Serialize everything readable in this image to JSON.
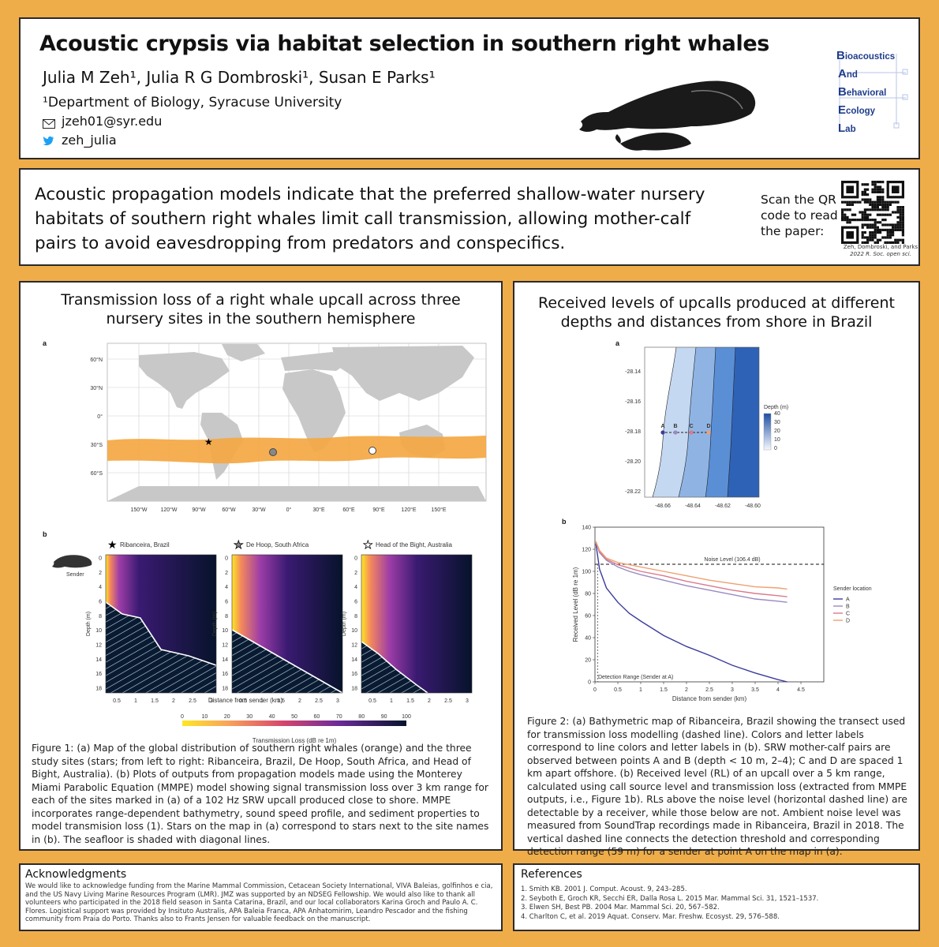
{
  "header": {
    "title": "Acoustic crypsis via habitat selection in southern right whales",
    "authors": "Julia M Zeh¹, Julia R G Dombroski¹, Susan E Parks¹",
    "affiliation": "¹Department of Biology, Syracuse University",
    "email": "jzeh01@syr.edu",
    "twitter": "zeh_julia",
    "lab_logo": {
      "lines": [
        "Bioacoustics",
        "And",
        "Behavioral",
        "Ecology",
        "Lab"
      ],
      "color": "#1f3d8a"
    }
  },
  "summary": {
    "text": "Acoustic propagation models indicate that the preferred shallow-water nursery habitats of southern right whales limit call transmission, allowing mother-calf pairs to avoid eavesdropping from predators and conspecifics.",
    "qr_label": "Scan the QR code to read the paper:",
    "qr_caption_1": "Zeh, Dombroski, and Parks",
    "qr_caption_2": "2022 R. Soc. open sci."
  },
  "left_section": {
    "title": "Transmission loss of a right whale upcall across three nursery sites in the southern hemisphere",
    "panel_a_label": "a",
    "panel_b_label": "b",
    "map": {
      "lat_ticks": [
        "60°N",
        "30°N",
        "0°",
        "30°S",
        "60°S"
      ],
      "lon_ticks": [
        "150°W",
        "120°W",
        "90°W",
        "60°W",
        "30°W",
        "0°",
        "30°E",
        "60°E",
        "90°E",
        "120°E",
        "150°E"
      ]
    },
    "sites": [
      {
        "name": "Ribanceira, Brazil",
        "star": "black-star"
      },
      {
        "name": "De Hoop, South Africa",
        "star": "gray-star"
      },
      {
        "name": "Head of the Bight, Australia",
        "star": "white-star"
      }
    ],
    "sender_label": "Sender",
    "depth_label": "Depth (m)",
    "depth_ticks": [
      "0",
      "2",
      "4",
      "6",
      "8",
      "10",
      "12",
      "14",
      "16",
      "18"
    ],
    "distance_ticks": [
      "0.5",
      "1",
      "1.5",
      "2",
      "2.5",
      "3"
    ],
    "distance_label": "Distance from sender (km)",
    "colorbar_ticks": [
      "0",
      "10",
      "20",
      "30",
      "40",
      "50",
      "60",
      "70",
      "80",
      "90",
      "100"
    ],
    "colorbar_label": "Transmission Loss (dB re 1m)",
    "caption": "Figure 1: (a) Map of the global distribution of southern right whales (orange) and the three study sites (stars; from left to right: Ribanceira, Brazil, De Hoop, South Africa, and Head of Bight, Australia). (b) Plots of outputs from propagation models made using the Monterey Miami Parabolic Equation (MMPE) model showing signal transmission loss over 3 km range for each of the sites marked in (a) of a 102 Hz SRW upcall produced close to shore. MMPE incorporates range-dependent bathymetry, sound speed profile, and sediment properties to model transmision loss (1). Stars on the map in (a) correspond to stars next to the site names in (b). The seafloor is shaded with diagonal lines."
  },
  "right_section": {
    "title": "Received levels of upcalls produced at different depths and distances from shore in Brazil",
    "panel_a_label": "a",
    "panel_b_label": "b",
    "bathy": {
      "lat_ticks": [
        "-28.14",
        "-28.16",
        "-28.18",
        "-28.20",
        "-28.22"
      ],
      "lon_ticks": [
        "-48.66",
        "-48.64",
        "-48.62",
        "-48.60"
      ],
      "colorbar_title": "Depth (m)",
      "colorbar_ticks": [
        "40",
        "30",
        "20",
        "10",
        "0"
      ],
      "point_labels": [
        "A",
        "B",
        "C",
        "D"
      ]
    },
    "caption": "Figure 2: (a) Bathymetric map of Ribanceira, Brazil showing the transect used for transmission loss modelling (dashed line). Colors and letter labels correspond to line colors and letter labels in (b). SRW mother-calf pairs are observed between points A and B (depth < 10 m, 2–4); C and D are spaced 1 km apart offshore. (b) Received level (RL) of an upcall over a 5 km range, calculated using call source level and transmission loss (extracted from MMPE outputs, i.e., Figure 1b). RLs above the noise level (horizontal dashed line) are detectable by a receiver, while those below are not. Ambient noise level was measured from SoundTrap recordings made in Ribanceira, Brazil in 2018. The vertical dashed line connects the detection threshold and corresponding detection range (59 m) for a sender at point A on the map in (a)."
  },
  "chart_data": {
    "type": "line",
    "xlabel": "Distance from sender (km)",
    "ylabel": "Received Level (dB re 1m)",
    "xlim": [
      0,
      5
    ],
    "ylim": [
      0,
      140
    ],
    "xticks": [
      "0",
      "0.5",
      "1",
      "1.5",
      "2",
      "2.5",
      "3",
      "3.5",
      "4",
      "4.5"
    ],
    "yticks": [
      "0",
      "20",
      "40",
      "60",
      "80",
      "100",
      "120",
      "140"
    ],
    "legend_title": "Sender location",
    "legend_position": "right",
    "noise_level": 106.4,
    "noise_label": "Noise Level (106.4 dB)",
    "detection_range_km": 0.059,
    "detection_label": "Detection Range (Sender at A)",
    "x": [
      0.02,
      0.1,
      0.25,
      0.5,
      0.75,
      1,
      1.5,
      2,
      2.5,
      3,
      3.5,
      4,
      4.2
    ],
    "series": [
      {
        "name": "A",
        "color": "#3b3b9e",
        "values": [
          125,
          102,
          85,
          72,
          62,
          55,
          42,
          32,
          24,
          15,
          8,
          2,
          0
        ]
      },
      {
        "name": "B",
        "color": "#9b8ac0",
        "values": [
          126,
          117,
          110,
          104,
          100,
          97,
          92,
          87,
          83,
          79,
          75,
          73,
          72
        ]
      },
      {
        "name": "C",
        "color": "#d97a8c",
        "values": [
          127,
          118,
          111,
          106,
          103,
          100,
          96,
          91,
          87,
          83,
          80,
          78,
          77
        ]
      },
      {
        "name": "D",
        "color": "#f0a070",
        "values": [
          127,
          119,
          112,
          108,
          106,
          104,
          100,
          96,
          92,
          89,
          86,
          85,
          84
        ]
      }
    ]
  },
  "acknowledgments": {
    "title": "Acknowledgments",
    "text": "We would like to acknowledge funding from the Marine Mammal Commission, Cetacean Society International, VIVA Baleias, golfinhos e cia, and the US Navy Living Marine Resources Program (LMR). JMZ was supported by an NDSEG Fellowship. We would also like to thank all volunteers who participated in the 2018 field season in Santa Catarina, Brazil, and our local collaborators Karina Groch and Paulo A. C. Flores. Logistical support was provided by Insituto Australis, APA Baleia Franca, APA Anhatomirim, Leandro Pescador and the fishing community from Praia do Porto. Thanks also to Frants Jensen for valuable feedback on the manuscript."
  },
  "references": {
    "title": "References",
    "items": [
      "1. Smith KB. 2001 J. Comput. Acoust. 9, 243–285.",
      "2. Seyboth E, Groch KR, Secchi ER, Dalla Rosa L. 2015 Mar. Mammal Sci. 31, 1521–1537.",
      "3. Elwen SH, Best PB. 2004 Mar. Mammal Sci. 20, 567–582.",
      "4. Charlton C, et al. 2019 Aquat. Conserv. Mar. Freshw. Ecosyst. 29, 576–588."
    ]
  }
}
